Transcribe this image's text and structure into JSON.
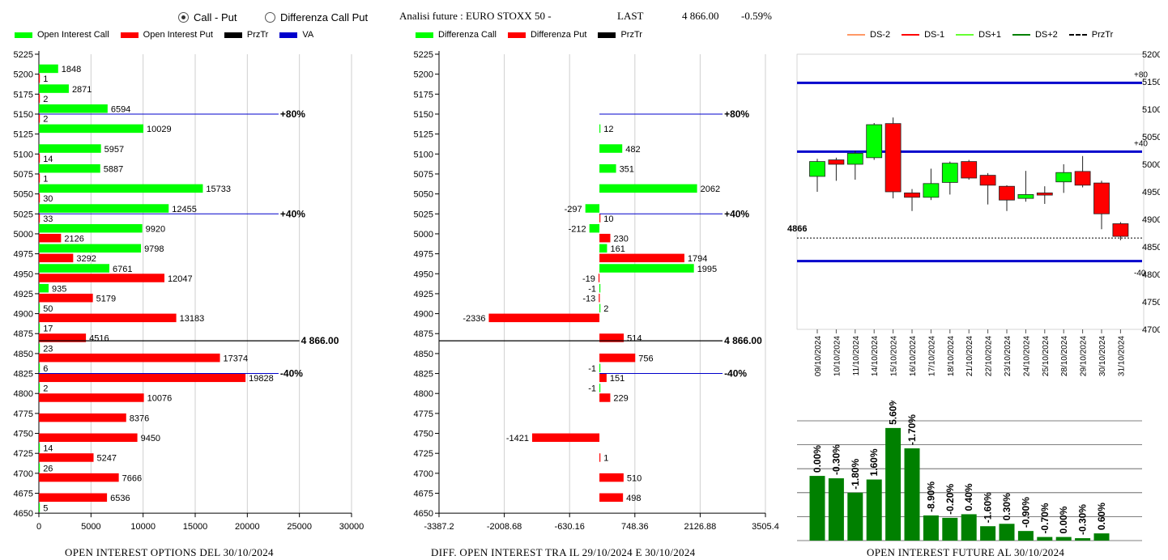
{
  "header": {
    "radio_options": [
      {
        "label": "Call - Put",
        "selected": true
      },
      {
        "label": "Differenza Call Put",
        "selected": false
      }
    ],
    "title": "Analisi future : EURO STOXX 50 -",
    "last_label": "LAST",
    "last_value": "4 866.00",
    "change": "-0.59%"
  },
  "colors": {
    "green": "#00ff00",
    "red": "#ff0000",
    "dark_green": "#008000",
    "blue": "#0000cc",
    "black": "#000000",
    "ds_minus2": "#ff9966",
    "ds_minus1": "#ff0000",
    "ds_plus1": "#66ff33",
    "ds_plus2": "#008000"
  },
  "chart_data": [
    {
      "type": "bar",
      "orientation": "horizontal",
      "caption": "OPEN INTEREST OPTIONS DEL 30/10/2024",
      "legend": [
        "Open Interest Call",
        "Open Interest Put",
        "PrzTr",
        "VA"
      ],
      "categories": [
        "5225",
        "5200",
        "5175",
        "5150",
        "5125",
        "5100",
        "5075",
        "5050",
        "5025",
        "5000",
        "4975",
        "4950",
        "4925",
        "4900",
        "4875",
        "4850",
        "4825",
        "4800",
        "4775",
        "4750",
        "4725",
        "4700",
        "4675",
        "4650"
      ],
      "series": [
        {
          "name": "Open Interest Call",
          "color": "green",
          "values": [
            null,
            1848,
            2871,
            6594,
            10029,
            5957,
            5887,
            15733,
            12455,
            9920,
            9798,
            6761,
            935,
            50,
            17,
            23,
            6,
            2,
            null,
            null,
            14,
            26,
            null,
            5
          ]
        },
        {
          "name": "Open Interest Put",
          "color": "red",
          "values": [
            null,
            1,
            2,
            2,
            null,
            14,
            1,
            30,
            33,
            2126,
            3292,
            12047,
            5179,
            13183,
            4516,
            17374,
            19828,
            10076,
            8376,
            9450,
            5247,
            7666,
            6536,
            null
          ]
        }
      ],
      "xlim": [
        0,
        30000
      ],
      "xticks": [
        "0",
        "5000",
        "10000",
        "15000",
        "20000",
        "25000",
        "30000"
      ],
      "reference_lines": [
        {
          "label": "+80%",
          "level": 5150,
          "color": "blue",
          "extent": 23000
        },
        {
          "label": "+40%",
          "level": 5025,
          "color": "blue",
          "extent": 23000
        },
        {
          "label": "4 866.00",
          "level": 4866,
          "color": "black",
          "extent": 25000
        },
        {
          "label": "-40%",
          "level": 4825,
          "color": "blue",
          "extent": 23000
        }
      ]
    },
    {
      "type": "bar",
      "orientation": "horizontal",
      "caption": "DIFF. OPEN INTEREST TRA IL 29/10/2024 E 30/10/2024",
      "legend": [
        "Differenza Call",
        "Differenza Put",
        "PrzTr"
      ],
      "categories": [
        "5225",
        "5200",
        "5175",
        "5150",
        "5125",
        "5100",
        "5075",
        "5050",
        "5025",
        "5000",
        "4975",
        "4950",
        "4925",
        "4900",
        "4875",
        "4850",
        "4825",
        "4800",
        "4775",
        "4750",
        "4725",
        "4700",
        "4675",
        "4650"
      ],
      "series": [
        {
          "name": "Differenza Call",
          "color": "green",
          "values": [
            null,
            null,
            null,
            null,
            12,
            482,
            351,
            2062,
            -297,
            -212,
            161,
            1995,
            -1,
            2,
            null,
            null,
            -1,
            -1,
            null,
            null,
            null,
            null,
            null,
            null
          ]
        },
        {
          "name": "Differenza Put",
          "color": "red",
          "values": [
            null,
            null,
            null,
            null,
            null,
            null,
            null,
            null,
            10,
            230,
            1794,
            -19,
            -13,
            -2336,
            514,
            756,
            151,
            229,
            null,
            -1421,
            1,
            510,
            498,
            null
          ]
        }
      ],
      "xlim": [
        -3387.2,
        3505.4
      ],
      "xticks": [
        "-3387.2",
        "-2008.68",
        "-630.16",
        "748.36",
        "2126.88",
        "3505.4"
      ],
      "reference_lines": [
        {
          "label": "+80%",
          "level": 5150,
          "color": "blue",
          "extent": 2600
        },
        {
          "label": "+40%",
          "level": 5025,
          "color": "blue",
          "extent": 2600
        },
        {
          "label": "4 866.00",
          "level": 4866,
          "color": "black",
          "extent": 2600
        },
        {
          "label": "-40%",
          "level": 4825,
          "color": "blue",
          "extent": 2600
        }
      ]
    },
    {
      "type": "candlestick",
      "legend": [
        "DS-2",
        "DS-1",
        "DS+1",
        "DS+2",
        "PrzTr"
      ],
      "dates": [
        "09/10/2024",
        "10/10/2024",
        "11/10/2024",
        "14/10/2024",
        "15/10/2024",
        "16/10/2024",
        "17/10/2024",
        "18/10/2024",
        "21/10/2024",
        "22/10/2024",
        "23/10/2024",
        "24/10/2024",
        "25/10/2024",
        "28/10/2024",
        "29/10/2024",
        "30/10/2024",
        "31/10/2024"
      ],
      "candles": [
        {
          "open": 4978,
          "close": 5005,
          "high": 5010,
          "low": 4950
        },
        {
          "open": 5008,
          "close": 5000,
          "high": 5012,
          "low": 4970
        },
        {
          "open": 5000,
          "close": 5020,
          "high": 5025,
          "low": 4972
        },
        {
          "open": 5012,
          "close": 5072,
          "high": 5075,
          "low": 5008
        },
        {
          "open": 5074,
          "close": 4950,
          "high": 5085,
          "low": 4938
        },
        {
          "open": 4948,
          "close": 4940,
          "high": 4955,
          "low": 4915
        },
        {
          "open": 4940,
          "close": 4965,
          "high": 4992,
          "low": 4935
        },
        {
          "open": 4967,
          "close": 5002,
          "high": 5005,
          "low": 4945
        },
        {
          "open": 5005,
          "close": 4975,
          "high": 5008,
          "low": 4972
        },
        {
          "open": 4980,
          "close": 4962,
          "high": 4984,
          "low": 4927
        },
        {
          "open": 4960,
          "close": 4935,
          "high": 4962,
          "low": 4915
        },
        {
          "open": 4938,
          "close": 4945,
          "high": 4988,
          "low": 4932
        },
        {
          "open": 4948,
          "close": 4944,
          "high": 4960,
          "low": 4928
        },
        {
          "open": 4968,
          "close": 4985,
          "high": 5000,
          "low": 4948
        },
        {
          "open": 4987,
          "close": 4962,
          "high": 5015,
          "low": 4958
        },
        {
          "open": 4966,
          "close": 4910,
          "high": 4970,
          "low": 4882
        },
        {
          "open": 4892,
          "close": 4869,
          "high": 4895,
          "low": 4862
        }
      ],
      "ylim": [
        4700,
        5200
      ],
      "yticks": [
        "5200",
        "5150",
        "5100",
        "5050",
        "5000",
        "4950",
        "4900",
        "4850",
        "4800",
        "4750",
        "4700"
      ],
      "level_lines": [
        {
          "label": "+80",
          "value": 5148,
          "color": "blue"
        },
        {
          "label": "+40",
          "value": 5023,
          "color": "blue"
        },
        {
          "label": "-40",
          "value": 4824,
          "color": "blue"
        }
      ],
      "przTr": {
        "label": "4866",
        "value": 4866
      }
    },
    {
      "type": "bar",
      "caption": "OPEN INTEREST FUTURE AL 30/10/2024",
      "categories": [
        "09/10/2024",
        "10/10/2024",
        "11/10/2024",
        "14/10/2024",
        "15/10/2024",
        "16/10/2024",
        "17/10/2024",
        "18/10/2024",
        "21/10/2024",
        "22/10/2024",
        "23/10/2024",
        "24/10/2024",
        "25/10/2024",
        "28/10/2024",
        "29/10/2024",
        "30/10/2024",
        "31/10/2024"
      ],
      "values": [
        54,
        52,
        40,
        51,
        94,
        77,
        21,
        19,
        22,
        12,
        14,
        8,
        3,
        3,
        2,
        6,
        null
      ],
      "labels": [
        "0.00%",
        "-0.30%",
        "-1.80%",
        "1.60%",
        "5.60%",
        "-1.70%",
        "-8.90%",
        "-0.20%",
        "0.40%",
        "-1.60%",
        "0.30%",
        "-0.90%",
        "-0.70%",
        "0.00%",
        "-0.30%",
        "0.60%",
        ""
      ],
      "ylim": [
        0,
        100
      ]
    }
  ]
}
